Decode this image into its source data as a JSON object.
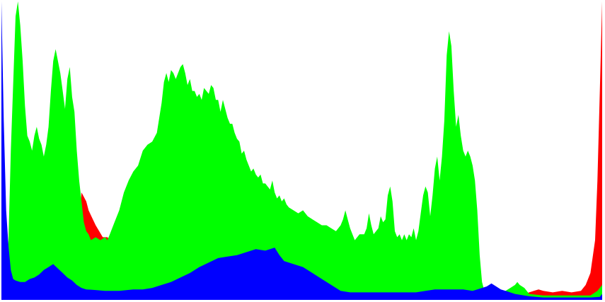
{
  "chart_data": {
    "type": "area",
    "ylim": [
      0,
      1
    ],
    "xlim": [
      0,
      255
    ],
    "background": "#ffffff",
    "series": [
      {
        "key": "red",
        "color": "#ff0000",
        "points": [
          [
            0,
            0.36
          ],
          [
            2,
            0.2
          ],
          [
            4,
            0.12
          ],
          [
            6,
            0.07
          ],
          [
            8,
            0.05
          ],
          [
            10,
            0.05
          ],
          [
            14,
            0.05
          ],
          [
            20,
            0.05
          ],
          [
            26,
            0.07
          ],
          [
            30,
            0.1
          ],
          [
            33,
            0.25
          ],
          [
            34,
            0.36
          ],
          [
            36,
            0.33
          ],
          [
            37,
            0.3
          ],
          [
            40,
            0.25
          ],
          [
            43,
            0.21
          ],
          [
            45,
            0.21
          ],
          [
            46,
            0.2
          ],
          [
            48,
            0.2
          ],
          [
            52,
            0.18
          ],
          [
            60,
            0.1
          ],
          [
            70,
            0.07
          ],
          [
            80,
            0.06
          ],
          [
            90,
            0.05
          ],
          [
            100,
            0.05
          ],
          [
            110,
            0.05
          ],
          [
            120,
            0.05
          ],
          [
            130,
            0.05
          ],
          [
            140,
            0.05
          ],
          [
            150,
            0.05
          ],
          [
            160,
            0.05
          ],
          [
            170,
            0.05
          ],
          [
            180,
            0.05
          ],
          [
            190,
            0.05
          ],
          [
            200,
            0.04
          ],
          [
            206,
            0.03
          ],
          [
            210,
            0.02
          ],
          [
            218,
            0.015
          ],
          [
            222,
            0.02
          ],
          [
            226,
            0.03
          ],
          [
            228,
            0.035
          ],
          [
            230,
            0.03
          ],
          [
            234,
            0.025
          ],
          [
            238,
            0.03
          ],
          [
            242,
            0.025
          ],
          [
            246,
            0.03
          ],
          [
            248,
            0.05
          ],
          [
            250,
            0.09
          ],
          [
            252,
            0.2
          ],
          [
            253,
            0.4
          ],
          [
            254,
            0.7
          ],
          [
            255,
            1.0
          ]
        ]
      },
      {
        "key": "green",
        "color": "#00ff00",
        "points": [
          [
            0,
            0.05
          ],
          [
            2,
            0.1
          ],
          [
            3,
            0.2
          ],
          [
            4,
            0.5
          ],
          [
            6,
            0.95
          ],
          [
            7,
            1.0
          ],
          [
            8,
            0.92
          ],
          [
            9,
            0.8
          ],
          [
            10,
            0.65
          ],
          [
            11,
            0.55
          ],
          [
            12,
            0.53
          ],
          [
            13,
            0.5
          ],
          [
            14,
            0.55
          ],
          [
            15,
            0.58
          ],
          [
            16,
            0.54
          ],
          [
            17,
            0.52
          ],
          [
            18,
            0.48
          ],
          [
            19,
            0.52
          ],
          [
            20,
            0.58
          ],
          [
            21,
            0.7
          ],
          [
            22,
            0.8
          ],
          [
            23,
            0.84
          ],
          [
            24,
            0.8
          ],
          [
            25,
            0.76
          ],
          [
            26,
            0.7
          ],
          [
            27,
            0.64
          ],
          [
            28,
            0.74
          ],
          [
            29,
            0.78
          ],
          [
            30,
            0.68
          ],
          [
            31,
            0.63
          ],
          [
            32,
            0.5
          ],
          [
            33,
            0.4
          ],
          [
            34,
            0.33
          ],
          [
            35,
            0.26
          ],
          [
            36,
            0.23
          ],
          [
            37,
            0.22
          ],
          [
            38,
            0.2
          ],
          [
            40,
            0.21
          ],
          [
            42,
            0.2
          ],
          [
            44,
            0.21
          ],
          [
            45,
            0.2
          ],
          [
            46,
            0.22
          ],
          [
            48,
            0.26
          ],
          [
            50,
            0.3
          ],
          [
            52,
            0.36
          ],
          [
            54,
            0.4
          ],
          [
            56,
            0.43
          ],
          [
            58,
            0.45
          ],
          [
            60,
            0.5
          ],
          [
            62,
            0.52
          ],
          [
            64,
            0.53
          ],
          [
            66,
            0.56
          ],
          [
            68,
            0.66
          ],
          [
            69,
            0.73
          ],
          [
            70,
            0.76
          ],
          [
            71,
            0.73
          ],
          [
            72,
            0.77
          ],
          [
            73,
            0.76
          ],
          [
            74,
            0.74
          ],
          [
            75,
            0.76
          ],
          [
            76,
            0.78
          ],
          [
            77,
            0.79
          ],
          [
            78,
            0.76
          ],
          [
            79,
            0.72
          ],
          [
            80,
            0.74
          ],
          [
            81,
            0.7
          ],
          [
            82,
            0.7
          ],
          [
            83,
            0.68
          ],
          [
            84,
            0.69
          ],
          [
            85,
            0.67
          ],
          [
            86,
            0.71
          ],
          [
            87,
            0.7
          ],
          [
            88,
            0.69
          ],
          [
            89,
            0.72
          ],
          [
            90,
            0.71
          ],
          [
            91,
            0.67
          ],
          [
            92,
            0.67
          ],
          [
            93,
            0.63
          ],
          [
            94,
            0.67
          ],
          [
            95,
            0.64
          ],
          [
            96,
            0.61
          ],
          [
            97,
            0.59
          ],
          [
            98,
            0.59
          ],
          [
            99,
            0.56
          ],
          [
            100,
            0.54
          ],
          [
            101,
            0.53
          ],
          [
            102,
            0.49
          ],
          [
            103,
            0.5
          ],
          [
            104,
            0.47
          ],
          [
            105,
            0.45
          ],
          [
            106,
            0.43
          ],
          [
            107,
            0.44
          ],
          [
            108,
            0.42
          ],
          [
            109,
            0.41
          ],
          [
            110,
            0.42
          ],
          [
            111,
            0.39
          ],
          [
            112,
            0.39
          ],
          [
            113,
            0.38
          ],
          [
            114,
            0.37
          ],
          [
            115,
            0.4
          ],
          [
            116,
            0.36
          ],
          [
            117,
            0.34
          ],
          [
            118,
            0.35
          ],
          [
            119,
            0.33
          ],
          [
            120,
            0.34
          ],
          [
            121,
            0.32
          ],
          [
            122,
            0.31
          ],
          [
            124,
            0.3
          ],
          [
            126,
            0.29
          ],
          [
            128,
            0.3
          ],
          [
            130,
            0.28
          ],
          [
            132,
            0.27
          ],
          [
            134,
            0.26
          ],
          [
            136,
            0.25
          ],
          [
            138,
            0.25
          ],
          [
            140,
            0.24
          ],
          [
            142,
            0.23
          ],
          [
            144,
            0.25
          ],
          [
            145,
            0.27
          ],
          [
            146,
            0.3
          ],
          [
            147,
            0.27
          ],
          [
            148,
            0.24
          ],
          [
            149,
            0.22
          ],
          [
            150,
            0.2
          ],
          [
            152,
            0.22
          ],
          [
            154,
            0.22
          ],
          [
            155,
            0.24
          ],
          [
            156,
            0.29
          ],
          [
            157,
            0.25
          ],
          [
            158,
            0.22
          ],
          [
            160,
            0.24
          ],
          [
            161,
            0.28
          ],
          [
            162,
            0.26
          ],
          [
            163,
            0.27
          ],
          [
            164,
            0.35
          ],
          [
            165,
            0.38
          ],
          [
            166,
            0.33
          ],
          [
            167,
            0.23
          ],
          [
            168,
            0.21
          ],
          [
            169,
            0.22
          ],
          [
            170,
            0.2
          ],
          [
            171,
            0.22
          ],
          [
            172,
            0.2
          ],
          [
            173,
            0.22
          ],
          [
            174,
            0.21
          ],
          [
            175,
            0.24
          ],
          [
            176,
            0.2
          ],
          [
            177,
            0.23
          ],
          [
            178,
            0.29
          ],
          [
            179,
            0.35
          ],
          [
            180,
            0.38
          ],
          [
            181,
            0.36
          ],
          [
            182,
            0.28
          ],
          [
            183,
            0.35
          ],
          [
            184,
            0.44
          ],
          [
            185,
            0.48
          ],
          [
            186,
            0.4
          ],
          [
            187,
            0.48
          ],
          [
            188,
            0.6
          ],
          [
            189,
            0.82
          ],
          [
            190,
            0.9
          ],
          [
            191,
            0.85
          ],
          [
            192,
            0.7
          ],
          [
            193,
            0.58
          ],
          [
            194,
            0.62
          ],
          [
            195,
            0.55
          ],
          [
            196,
            0.5
          ],
          [
            197,
            0.48
          ],
          [
            198,
            0.5
          ],
          [
            199,
            0.48
          ],
          [
            200,
            0.45
          ],
          [
            201,
            0.4
          ],
          [
            202,
            0.3
          ],
          [
            203,
            0.15
          ],
          [
            204,
            0.06
          ],
          [
            205,
            0.03
          ],
          [
            210,
            0.03
          ],
          [
            214,
            0.03
          ],
          [
            216,
            0.04
          ],
          [
            218,
            0.05
          ],
          [
            219,
            0.06
          ],
          [
            220,
            0.05
          ],
          [
            222,
            0.04
          ],
          [
            224,
            0.02
          ],
          [
            230,
            0.015
          ],
          [
            240,
            0.015
          ],
          [
            250,
            0.015
          ],
          [
            253,
            0.03
          ],
          [
            255,
            0.05
          ]
        ]
      },
      {
        "key": "blue",
        "color": "#0000ff",
        "points": [
          [
            0,
            1.0
          ],
          [
            1,
            0.6
          ],
          [
            2,
            0.3
          ],
          [
            3,
            0.18
          ],
          [
            4,
            0.1
          ],
          [
            5,
            0.07
          ],
          [
            6,
            0.065
          ],
          [
            8,
            0.06
          ],
          [
            10,
            0.06
          ],
          [
            12,
            0.07
          ],
          [
            14,
            0.075
          ],
          [
            16,
            0.085
          ],
          [
            18,
            0.1
          ],
          [
            20,
            0.11
          ],
          [
            22,
            0.12
          ],
          [
            24,
            0.105
          ],
          [
            26,
            0.09
          ],
          [
            28,
            0.075
          ],
          [
            30,
            0.065
          ],
          [
            32,
            0.05
          ],
          [
            34,
            0.04
          ],
          [
            36,
            0.035
          ],
          [
            40,
            0.033
          ],
          [
            44,
            0.03
          ],
          [
            50,
            0.03
          ],
          [
            56,
            0.035
          ],
          [
            60,
            0.035
          ],
          [
            64,
            0.04
          ],
          [
            68,
            0.05
          ],
          [
            72,
            0.06
          ],
          [
            76,
            0.075
          ],
          [
            80,
            0.09
          ],
          [
            84,
            0.11
          ],
          [
            88,
            0.125
          ],
          [
            92,
            0.14
          ],
          [
            96,
            0.145
          ],
          [
            100,
            0.15
          ],
          [
            104,
            0.16
          ],
          [
            108,
            0.17
          ],
          [
            112,
            0.165
          ],
          [
            114,
            0.17
          ],
          [
            116,
            0.175
          ],
          [
            118,
            0.15
          ],
          [
            120,
            0.13
          ],
          [
            124,
            0.12
          ],
          [
            128,
            0.11
          ],
          [
            132,
            0.09
          ],
          [
            136,
            0.07
          ],
          [
            140,
            0.05
          ],
          [
            144,
            0.03
          ],
          [
            148,
            0.025
          ],
          [
            152,
            0.025
          ],
          [
            156,
            0.025
          ],
          [
            160,
            0.025
          ],
          [
            164,
            0.025
          ],
          [
            168,
            0.025
          ],
          [
            172,
            0.025
          ],
          [
            176,
            0.025
          ],
          [
            180,
            0.03
          ],
          [
            184,
            0.035
          ],
          [
            188,
            0.035
          ],
          [
            192,
            0.035
          ],
          [
            196,
            0.035
          ],
          [
            200,
            0.03
          ],
          [
            202,
            0.035
          ],
          [
            204,
            0.04
          ],
          [
            206,
            0.045
          ],
          [
            208,
            0.055
          ],
          [
            210,
            0.045
          ],
          [
            212,
            0.035
          ],
          [
            214,
            0.03
          ],
          [
            218,
            0.02
          ],
          [
            224,
            0.012
          ],
          [
            230,
            0.008
          ],
          [
            240,
            0.008
          ],
          [
            250,
            0.008
          ],
          [
            254,
            0.01
          ],
          [
            255,
            0.02
          ]
        ]
      }
    ]
  }
}
